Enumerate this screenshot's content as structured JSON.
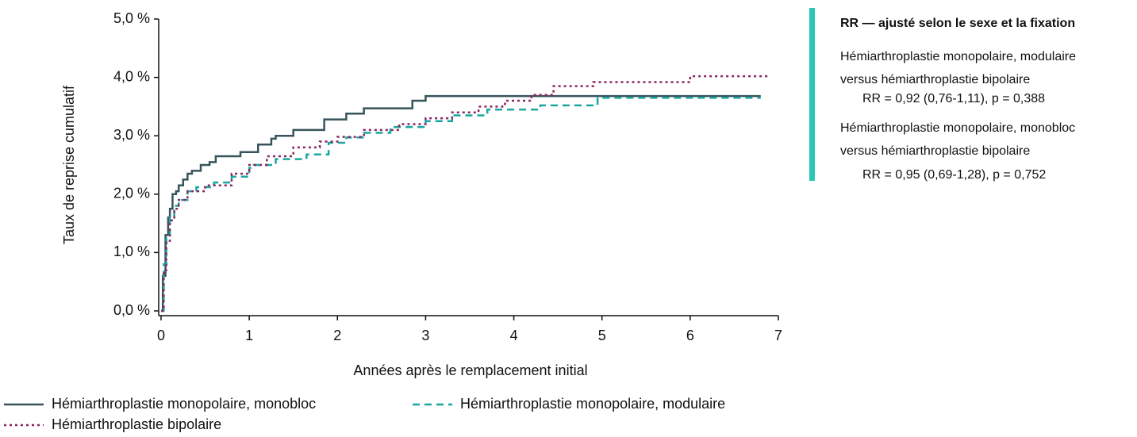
{
  "chart_data": {
    "type": "step",
    "x_label": "Années après le remplacement initial",
    "y_label": "Taux de reprise cumulatif",
    "xlim": [
      0,
      7
    ],
    "xticks": [
      0,
      1,
      2,
      3,
      4,
      5,
      6,
      7
    ],
    "ylim": [
      0,
      5
    ],
    "yticks": [
      {
        "value": 0,
        "label": "0,0 %"
      },
      {
        "value": 1,
        "label": "1,0 %"
      },
      {
        "value": 2,
        "label": "2,0 %"
      },
      {
        "value": 3,
        "label": "3,0 %"
      },
      {
        "value": 4,
        "label": "4,0 %"
      },
      {
        "value": 5,
        "label": "5,0 %"
      }
    ],
    "grid": false,
    "series": [
      {
        "name": "Hémiarthroplastie monopolaire, monobloc",
        "color": "#37545a",
        "dash": "solid",
        "x": [
          0,
          0.02,
          0.05,
          0.08,
          0.1,
          0.13,
          0.17,
          0.2,
          0.25,
          0.3,
          0.35,
          0.45,
          0.55,
          0.62,
          0.9,
          1.1,
          1.25,
          1.3,
          1.5,
          1.85,
          2.1,
          2.3,
          2.85,
          3.0,
          6.8
        ],
        "values": [
          0,
          0.6,
          1.3,
          1.6,
          1.75,
          2.0,
          2.05,
          2.15,
          2.25,
          2.35,
          2.4,
          2.5,
          2.55,
          2.65,
          2.72,
          2.85,
          2.95,
          3.0,
          3.1,
          3.28,
          3.38,
          3.47,
          3.6,
          3.68,
          3.68
        ]
      },
      {
        "name": "Hémiarthroplastie monopolaire, modulaire",
        "color": "#1aa6a0",
        "dash": "dashed",
        "x": [
          0,
          0.03,
          0.06,
          0.1,
          0.15,
          0.2,
          0.3,
          0.4,
          0.6,
          0.8,
          1.0,
          1.05,
          1.3,
          1.65,
          1.9,
          2.1,
          2.3,
          2.6,
          3.0,
          3.3,
          3.7,
          4.3,
          4.95,
          6.8
        ],
        "values": [
          0,
          0.8,
          1.3,
          1.6,
          1.8,
          1.9,
          2.05,
          2.12,
          2.2,
          2.3,
          2.45,
          2.5,
          2.6,
          2.68,
          2.88,
          2.97,
          3.05,
          3.15,
          3.25,
          3.35,
          3.45,
          3.52,
          3.65,
          3.65
        ]
      },
      {
        "name": "Hémiarthroplastie bipolaire",
        "color": "#8b2561",
        "dash": "dotted",
        "x": [
          0,
          0.03,
          0.06,
          0.1,
          0.15,
          0.2,
          0.3,
          0.5,
          0.8,
          1.0,
          1.2,
          1.5,
          1.8,
          2.0,
          2.3,
          2.7,
          3.0,
          3.3,
          3.6,
          3.9,
          4.2,
          4.45,
          4.9,
          6.0,
          6.9
        ],
        "values": [
          0,
          0.7,
          1.2,
          1.55,
          1.75,
          1.9,
          2.05,
          2.15,
          2.35,
          2.5,
          2.65,
          2.8,
          2.9,
          2.98,
          3.1,
          3.2,
          3.3,
          3.4,
          3.5,
          3.6,
          3.7,
          3.85,
          3.92,
          4.02,
          4.02
        ]
      }
    ],
    "annotation": {
      "title": "RR — ajusté selon le sexe et la fixation",
      "lines": [
        "Hémiarthroplastie monopolaire, modulaire",
        "versus hémiarthroplastie bipolaire",
        "RR = 0,92 (0,76-1,11), p = 0,388",
        "Hémiarthroplastie monopolaire, monobloc",
        "versus hémiarthroplastie bipolaire",
        "RR = 0,95 (0,69-1,28), p = 0,752"
      ],
      "color": "#2ec4b6"
    }
  }
}
